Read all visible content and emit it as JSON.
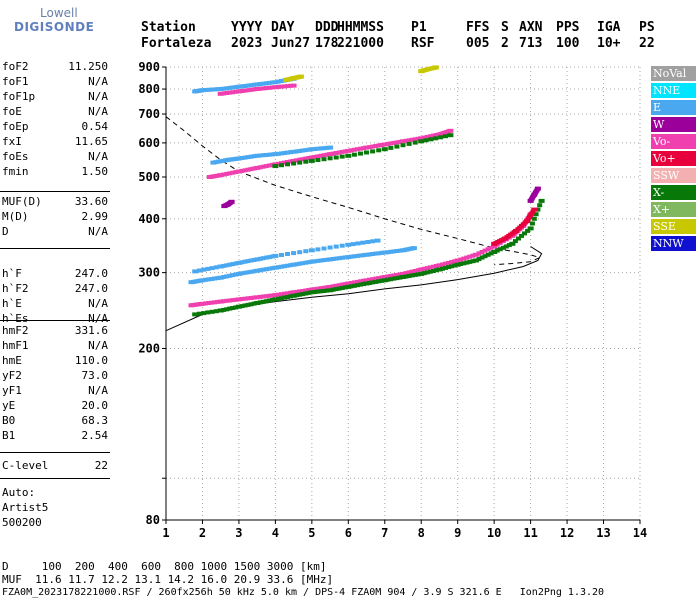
{
  "logo": {
    "brand": "Lowell",
    "product": "DIGISONDE"
  },
  "header": {
    "labels": [
      "Station",
      "YYYY",
      "DAY",
      "DDD",
      "HHMMSS",
      "P1",
      "FFS",
      "S",
      "AXN",
      "PPS",
      "IGA",
      "PS"
    ],
    "values": [
      "Fortaleza",
      "2023",
      "Jun27",
      "178",
      "221000",
      "RSF",
      "005",
      "2",
      "713",
      "100",
      "10+",
      "22"
    ]
  },
  "params": {
    "group1": [
      {
        "name": "foF2",
        "value": "11.250"
      },
      {
        "name": "foF1",
        "value": "N/A"
      },
      {
        "name": "foF1p",
        "value": "N/A"
      },
      {
        "name": "foE",
        "value": "N/A"
      },
      {
        "name": "foEp",
        "value": "0.54"
      },
      {
        "name": "fxI",
        "value": "11.65"
      },
      {
        "name": "foEs",
        "value": "N/A"
      },
      {
        "name": "fmin",
        "value": "1.50"
      }
    ],
    "group2": [
      {
        "name": "MUF(D)",
        "value": "33.60"
      },
      {
        "name": "M(D)",
        "value": "2.99"
      },
      {
        "name": "D",
        "value": "N/A"
      }
    ],
    "group3": [
      {
        "name": "h`F",
        "value": "247.0"
      },
      {
        "name": "h`F2",
        "value": "247.0"
      },
      {
        "name": "h`E",
        "value": "N/A"
      },
      {
        "name": "h`Es",
        "value": "N/A"
      }
    ],
    "group4": [
      {
        "name": "hmF2",
        "value": "331.6"
      },
      {
        "name": "hmF1",
        "value": "N/A"
      },
      {
        "name": "hmE",
        "value": "110.0"
      },
      {
        "name": "yF2",
        "value": "73.0"
      },
      {
        "name": "yF1",
        "value": "N/A"
      },
      {
        "name": "yE",
        "value": "20.0"
      },
      {
        "name": "B0",
        "value": "68.3"
      },
      {
        "name": "B1",
        "value": "2.54"
      }
    ],
    "group5": [
      {
        "name": "C-level",
        "value": "22"
      }
    ]
  },
  "auto": {
    "line1": "Auto:",
    "line2": "Artist5",
    "line3": "500200"
  },
  "legend": [
    {
      "label": "NoVal",
      "color": "#a0a0a0"
    },
    {
      "label": "NNE",
      "color": "#00e5ff"
    },
    {
      "label": "E",
      "color": "#4aa8f0"
    },
    {
      "label": "W",
      "color": "#9b009b"
    },
    {
      "label": "Vo-",
      "color": "#f040b0"
    },
    {
      "label": "Vo+",
      "color": "#e8003c"
    },
    {
      "label": "SSW",
      "color": "#f4b0b0"
    },
    {
      "label": "X-",
      "color": "#087808"
    },
    {
      "label": "X+",
      "color": "#80b860"
    },
    {
      "label": "SSE",
      "color": "#c8c800"
    },
    {
      "label": "NNW",
      "color": "#1010d0"
    }
  ],
  "footer": {
    "line1": "D     100  200  400  600  800 1000 1500 3000 [km]",
    "line2": "MUF  11.6 11.7 12.2 13.1 14.2 16.0 20.9 33.6 [MHz]",
    "line3": "FZA0M_2023178221000.RSF / 260fx256h 50 kHz 5.0 km / DPS-4 FZA0M 904 / 3.9 S 321.6 E   Ion2Png 1.3.20"
  },
  "chart_data": {
    "type": "scatter",
    "title": "",
    "xlabel": "",
    "ylabel": "",
    "xlim": [
      1,
      14
    ],
    "ylim": [
      80,
      900
    ],
    "y_scale": "log",
    "x_ticks": [
      1,
      2,
      3,
      4,
      5,
      6,
      7,
      8,
      9,
      10,
      11,
      12,
      13,
      14
    ],
    "y_ticks": [
      80,
      100,
      200,
      300,
      400,
      500,
      600,
      700,
      800,
      900
    ],
    "y_tick_labels": [
      "80",
      "",
      "200",
      "300",
      "400",
      "500",
      "600",
      "700",
      "800",
      "900"
    ],
    "grid": true,
    "series": [
      {
        "name": "E",
        "color": "#4aa8f0",
        "traces": [
          {
            "x": [
              1.7,
              2.0,
              2.5,
              3.0,
              3.5,
              4.0,
              4.5,
              5.0,
              5.5,
              6.0,
              6.5,
              7.0,
              7.5,
              7.8
            ],
            "y": [
              285,
              288,
              292,
              298,
              303,
              308,
              313,
              318,
              322,
              326,
              330,
              334,
              338,
              342
            ]
          },
          {
            "x": [
              1.8,
              2.5,
              3.0,
              3.5,
              4.0,
              5.0,
              6.0,
              6.8
            ],
            "y": [
              302,
              310,
              316,
              322,
              328,
              338,
              348,
              356
            ]
          },
          {
            "x": [
              2.3,
              2.7,
              3.0,
              3.5,
              4.0,
              4.5,
              5.0,
              5.5
            ],
            "y": [
              540,
              548,
              552,
              560,
              565,
              572,
              580,
              585
            ]
          },
          {
            "x": [
              1.8,
              2.0,
              2.5,
              3.0,
              3.5,
              4.0,
              4.5
            ],
            "y": [
              790,
              795,
              800,
              810,
              820,
              830,
              845
            ]
          }
        ]
      },
      {
        "name": "Vo-",
        "color": "#f040b0",
        "traces": [
          {
            "x": [
              1.7,
              2.0,
              2.5,
              3.0,
              3.5,
              4.0,
              4.5,
              5.0,
              5.5,
              6.0,
              6.5,
              7.0,
              7.5,
              8.0,
              8.5,
              9.0,
              9.5,
              10.0,
              10.5,
              10.8,
              11.0
            ],
            "y": [
              252,
              254,
              257,
              260,
              263,
              266,
              270,
              274,
              278,
              283,
              288,
              293,
              298,
              305,
              312,
              320,
              330,
              345,
              365,
              385,
              410
            ]
          },
          {
            "x": [
              2.2,
              2.5,
              3.0,
              3.5,
              4.0,
              4.5,
              5.0,
              5.5,
              6.0,
              6.5,
              7.0,
              7.5,
              8.0,
              8.5,
              8.8
            ],
            "y": [
              500,
              505,
              515,
              525,
              535,
              545,
              555,
              565,
              575,
              585,
              595,
              605,
              615,
              628,
              640
            ]
          },
          {
            "x": [
              2.5,
              3.0,
              3.5,
              4.0,
              4.5
            ],
            "y": [
              780,
              790,
              800,
              808,
              815
            ]
          }
        ]
      },
      {
        "name": "X-",
        "color": "#087808",
        "traces": [
          {
            "x": [
              1.8,
              2.5,
              3.0,
              3.5,
              4.0,
              4.5,
              5.0,
              5.5,
              6.0,
              6.5,
              7.0,
              7.5,
              8.0,
              8.5,
              9.0,
              9.5,
              10.0,
              10.5,
              11.0,
              11.3
            ],
            "y": [
              240,
              245,
              250,
              255,
              260,
              265,
              270,
              273,
              278,
              283,
              288,
              293,
              298,
              305,
              313,
              320,
              335,
              350,
              380,
              440
            ]
          },
          {
            "x": [
              4.0,
              5.0,
              6.0,
              7.0,
              8.0,
              8.8
            ],
            "y": [
              530,
              545,
              560,
              580,
              605,
              625
            ]
          }
        ]
      },
      {
        "name": "Vo+",
        "color": "#e8003c",
        "traces": [
          {
            "x": [
              10.0,
              10.3,
              10.6,
              10.9,
              11.1
            ],
            "y": [
              350,
              360,
              375,
              395,
              420
            ]
          }
        ]
      },
      {
        "name": "SSE",
        "color": "#c8c800",
        "traces": [
          {
            "x": [
              8.0,
              8.2,
              8.4
            ],
            "y": [
              880,
              890,
              898
            ]
          },
          {
            "x": [
              4.3,
              4.5,
              4.7
            ],
            "y": [
              840,
              848,
              855
            ]
          }
        ]
      },
      {
        "name": "W",
        "color": "#9b009b",
        "traces": [
          {
            "x": [
              2.6,
              2.7,
              2.8
            ],
            "y": [
              428,
              432,
              438
            ]
          },
          {
            "x": [
              11.0,
              11.1,
              11.2
            ],
            "y": [
              440,
              455,
              470
            ]
          }
        ]
      }
    ],
    "model_profile_dashed": {
      "x": [
        1.0,
        1.5,
        2.0,
        2.5,
        3.0,
        4.0,
        5.0,
        6.0,
        7.0,
        8.0,
        9.0,
        10.0,
        10.6,
        11.0,
        11.25,
        11.0,
        10.5,
        10.0
      ],
      "y": [
        690,
        640,
        590,
        548,
        515,
        478,
        450,
        425,
        400,
        378,
        360,
        342,
        335,
        330,
        325,
        318,
        315,
        313
      ]
    },
    "model_profile_solid": {
      "x": [
        1.0,
        2.0,
        3.0,
        4.0,
        5.0,
        6.0,
        7.0,
        8.0,
        9.0,
        10.0,
        10.8,
        11.2,
        11.3,
        11.0
      ],
      "y": [
        220,
        240,
        250,
        257,
        263,
        268,
        275,
        281,
        289,
        299,
        310,
        320,
        332,
        345
      ]
    }
  }
}
